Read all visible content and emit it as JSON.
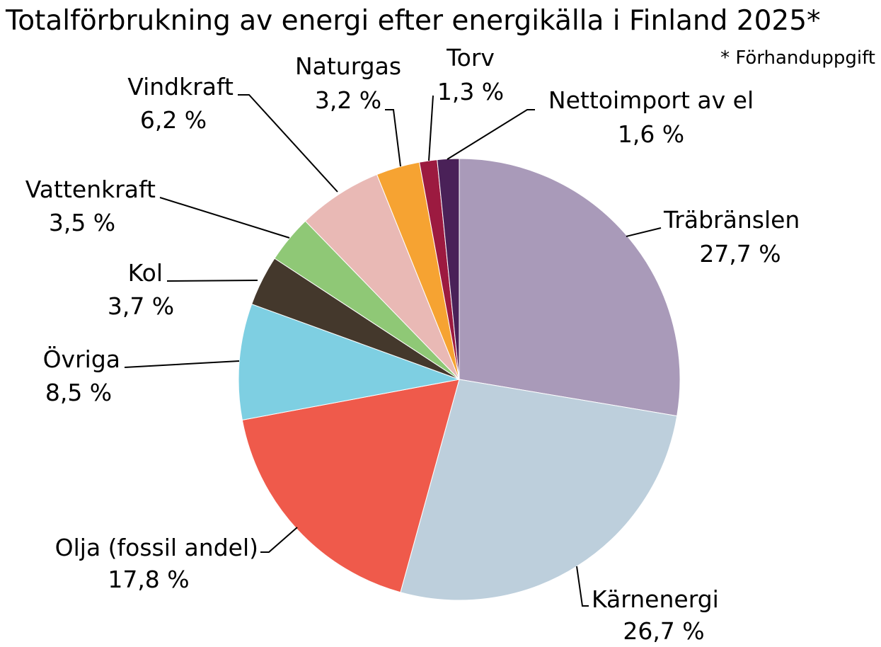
{
  "title": "Totalförbrukning av energi efter energikälla  i Finland 2025*",
  "footnote": "* Förhanduppgift",
  "chart_data": {
    "type": "pie",
    "title": "Totalförbrukning av energi efter energikälla  i Finland 2025*",
    "start_angle_deg": 0,
    "direction": "clockwise",
    "slices": [
      {
        "name": "Träbränslen",
        "value": 27.7,
        "label": "27,7 %",
        "color": "#A99AB9"
      },
      {
        "name": "Kärnenergi",
        "value": 26.7,
        "label": "26,7 %",
        "color": "#BDCFDC"
      },
      {
        "name": "Olja (fossil andel)",
        "value": 17.8,
        "label": "17,8 %",
        "color": "#EF5A4B"
      },
      {
        "name": "Övriga",
        "value": 8.5,
        "label": "8,5 %",
        "color": "#7ECFE2"
      },
      {
        "name": "Kol",
        "value": 3.7,
        "label": "3,7 %",
        "color": "#44382C"
      },
      {
        "name": "Vattenkraft",
        "value": 3.5,
        "label": "3,5 %",
        "color": "#8FC876"
      },
      {
        "name": "Vindkraft",
        "value": 6.2,
        "label": "6,2 %",
        "color": "#E9B9B5"
      },
      {
        "name": "Naturgas",
        "value": 3.2,
        "label": "3,2 %",
        "color": "#F6A332"
      },
      {
        "name": "Torv",
        "value": 1.3,
        "label": "1,3 %",
        "color": "#9C1A40"
      },
      {
        "name": "Nettoimport av el",
        "value": 1.6,
        "label": "1,6 %",
        "color": "#4A2158"
      }
    ]
  }
}
